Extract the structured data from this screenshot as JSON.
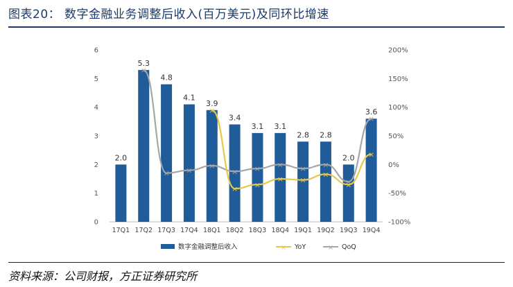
{
  "title": "图表20： 数字金融业务调整后收入(百万美元)及同环比增速",
  "source": "资料来源：公司财报，方正证券研究所",
  "colors": {
    "bar": "#1f5c99",
    "yoy": "#e6c84a",
    "qoq": "#a6a6a6",
    "title": "#1b3a6b"
  },
  "chart_data": {
    "type": "bar",
    "title": "",
    "categories": [
      "17Q1",
      "17Q2",
      "17Q3",
      "17Q4",
      "18Q1",
      "18Q2",
      "18Q3",
      "18Q4",
      "19Q1",
      "19Q2",
      "19Q3",
      "19Q4"
    ],
    "series": [
      {
        "name": "数字金融调整后收入",
        "type": "bar",
        "axis": "left",
        "values": [
          2.0,
          5.3,
          4.8,
          4.1,
          3.9,
          3.4,
          3.1,
          3.1,
          2.8,
          2.8,
          2.0,
          3.6
        ],
        "labels": [
          "2.0",
          "5.3",
          "4.8",
          "4.1",
          "3.9",
          "3.4",
          "3.1",
          "3.1",
          "2.8",
          "2.8",
          "2.0",
          "3.6"
        ]
      },
      {
        "name": "YoY",
        "type": "line",
        "axis": "right",
        "values": [
          null,
          null,
          null,
          null,
          95,
          -42,
          -35,
          -25,
          -27,
          -17,
          -35,
          18
        ]
      },
      {
        "name": "QoQ",
        "type": "line",
        "axis": "right",
        "values": [
          null,
          165,
          -15,
          -10,
          -2,
          -12,
          -7,
          0,
          -7,
          0,
          -30,
          80
        ]
      }
    ],
    "left_axis": {
      "min": 0,
      "max": 6,
      "ticks": [
        "0",
        "1",
        "2",
        "3",
        "4",
        "5",
        "6"
      ]
    },
    "right_axis": {
      "min": -100,
      "max": 200,
      "ticks": [
        "-100%",
        "-50%",
        "0%",
        "50%",
        "100%",
        "150%",
        "200%"
      ]
    },
    "legend": {
      "position": "bottom",
      "entries": [
        "数字金融调整后收入",
        "YoY",
        "QoQ"
      ]
    },
    "grid": false
  }
}
